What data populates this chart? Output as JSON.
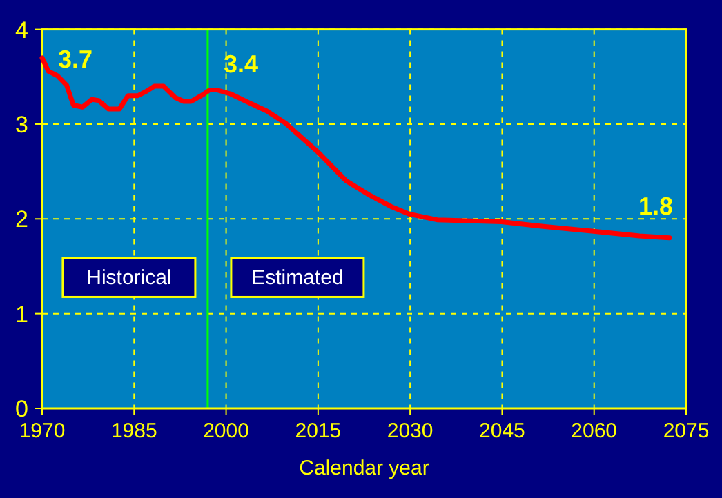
{
  "chart_data": {
    "type": "line",
    "xlabel": "Calendar year",
    "x": [
      1970,
      1971,
      1972.5,
      1974,
      1975.1,
      1976.6,
      1978.1,
      1979.2,
      1980.8,
      1982.6,
      1984,
      1985.6,
      1987.1,
      1988.3,
      1989.8,
      1991.7,
      1993.1,
      1994.3,
      1996.2,
      1997.3,
      1998.5,
      2000.7,
      2003.6,
      2006.6,
      2009.7,
      2014.9,
      2019.6,
      2023.4,
      2026.9,
      2029.9,
      2034.4,
      2044.9,
      2051.7,
      2059.9,
      2067.4,
      2072.3
    ],
    "series": [
      {
        "color": "#ff0000",
        "values": [
          3.7,
          3.56,
          3.51,
          3.41,
          3.2,
          3.18,
          3.26,
          3.25,
          3.16,
          3.16,
          3.3,
          3.3,
          3.35,
          3.4,
          3.4,
          3.28,
          3.24,
          3.24,
          3.31,
          3.36,
          3.36,
          3.32,
          3.23,
          3.14,
          3.01,
          2.71,
          2.4,
          2.25,
          2.13,
          2.05,
          1.99,
          1.97,
          1.92,
          1.87,
          1.82,
          1.8
        ]
      }
    ],
    "xlim": [
      1970,
      2075
    ],
    "xticks": [
      1970,
      1985,
      2000,
      2015,
      2030,
      2045,
      2060,
      2075
    ],
    "ylim": [
      0,
      4
    ],
    "yticks": [
      0,
      1,
      2,
      3,
      4
    ],
    "grid": true,
    "marker": "none",
    "line_style": "solid",
    "ref_lines": [
      {
        "axis": "x",
        "value": 1997,
        "color": "#00ff00"
      }
    ],
    "annotations": [
      {
        "text": "3.7",
        "x": 1970,
        "y": 3.7
      },
      {
        "text": "3.4",
        "x": 1997,
        "y": 3.4
      },
      {
        "text": "1.8",
        "x": 2072.3,
        "y": 1.8
      },
      "Historical",
      "Estimated"
    ]
  }
}
